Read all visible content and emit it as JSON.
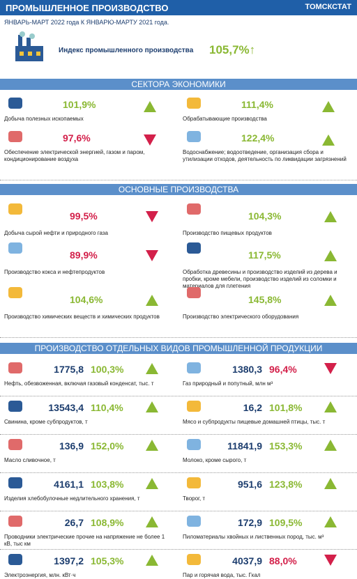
{
  "header": {
    "title": "ПРОМЫШЛЕННОЕ ПРОИЗВОДСТВО",
    "brand": "ТОМСКСТАТ",
    "subtitle": "ЯНВАРЬ-МАРТ 2022 года К ЯНВАРЮ-МАРТУ 2021 года."
  },
  "index": {
    "label": "Индекс промышленного производства",
    "value": "105,7%↑"
  },
  "sectors": {
    "title": "СЕКТОРА ЭКОНОМИКИ",
    "items": [
      {
        "label": "Добыча полезных ископаемых",
        "value": "101,9%",
        "trend": "up"
      },
      {
        "label": "Обрабатывающие производства",
        "value": "111,4%",
        "trend": "up"
      },
      {
        "label": "Обеспечение электрической энергией, газом и паром, кондиционирование воздуха",
        "value": "97,6%",
        "trend": "down"
      },
      {
        "label": "Водоснабжение; водоотведение, организация сбора и утилизации отходов, деятельность по ликвидации загрязнений",
        "value": "122,4%",
        "trend": "up"
      }
    ]
  },
  "main": {
    "title": "ОСНОВНЫЕ ПРОИЗВОДСТВА",
    "items": [
      {
        "label": "Добыча сырой нефти и природного газа",
        "value": "99,5%",
        "trend": "down"
      },
      {
        "label": "Производство пищевых продуктов",
        "value": "104,3%",
        "trend": "up"
      },
      {
        "label": "Производство кокса и нефтепродуктов",
        "value": "89,9%",
        "trend": "down"
      },
      {
        "label": "Обработка древесины и производство изделий из дерева и пробки, кроме мебели, производство изделий из соломки и материалов для плетения",
        "value": "117,5%",
        "trend": "up"
      },
      {
        "label": "Производство химических веществ и химических продуктов",
        "value": "104,6%",
        "trend": "up"
      },
      {
        "label": "Производство электрического оборудования",
        "value": "145,8%",
        "trend": "up"
      }
    ]
  },
  "products": {
    "title": "ПРОИЗВОДСТВО ОТДЕЛЬНЫХ ВИДОВ ПРОМЫШЛЕННОЙ ПРОДУКЦИИ",
    "items": [
      {
        "label": "Нефть, обезвоженная, включая газовый конденсат, тыс. т",
        "amount": "1775,8",
        "value": "100,3%",
        "trend": "up"
      },
      {
        "label": "Газ природный и попутный, млн м³",
        "amount": "1380,3",
        "value": "96,4%",
        "trend": "down"
      },
      {
        "label": "Свинина, кроме субпродуктов, т",
        "amount": "13543,4",
        "value": "110,4%",
        "trend": "up"
      },
      {
        "label": "Мясо и субпродукты пищевые домашней птицы, тыс. т",
        "amount": "16,2",
        "value": "101,8%",
        "trend": "up"
      },
      {
        "label": "Масло сливочное, т",
        "amount": "136,9",
        "value": "152,0%",
        "trend": "up"
      },
      {
        "label": "Молоко, кроме сырого, т",
        "amount": "11841,9",
        "value": "153,3%",
        "trend": "up"
      },
      {
        "label": "Изделия хлебобулочные недлительного хранения, т",
        "amount": "4161,1",
        "value": "103,8%",
        "trend": "up"
      },
      {
        "label": "Творог, т",
        "amount": "951,6",
        "value": "123,8%",
        "trend": "up"
      },
      {
        "label": "Проводники электрические прочие на напряжение не более 1 кВ, тыс км",
        "amount": "26,7",
        "value": "108,9%",
        "trend": "up"
      },
      {
        "label": "Пиломатериалы хвойных и лиственных пород, тыс. м³",
        "amount": "172,9",
        "value": "109,5%",
        "trend": "up"
      },
      {
        "label": "Электроэнергия, млн. кВт·ч",
        "amount": "1397,2",
        "value": "105,3%",
        "trend": "up"
      },
      {
        "label": "Пар и горячая вода, тыс. Гкал",
        "amount": "4037,9",
        "value": "88,0%",
        "trend": "down"
      }
    ]
  }
}
